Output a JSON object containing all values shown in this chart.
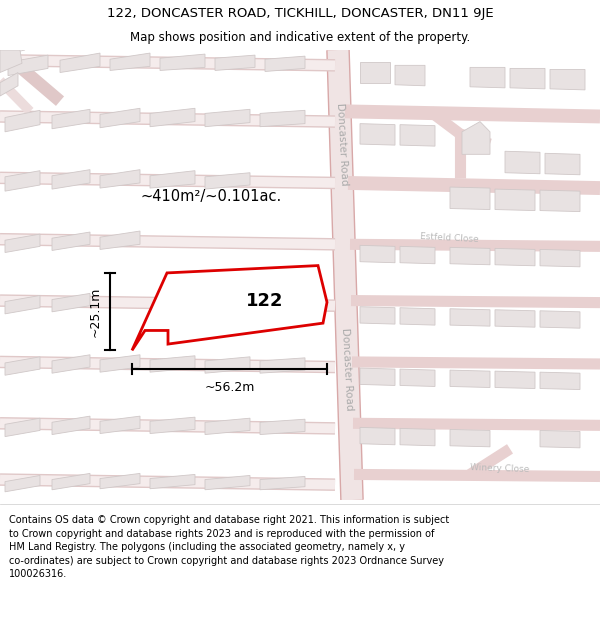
{
  "title_line1": "122, DONCASTER ROAD, TICKHILL, DONCASTER, DN11 9JE",
  "title_line2": "Map shows position and indicative extent of the property.",
  "footer_text": "Contains OS data © Crown copyright and database right 2021. This information is subject\nto Crown copyright and database rights 2023 and is reproduced with the permission of\nHM Land Registry. The polygons (including the associated geometry, namely x, y\nco-ordinates) are subject to Crown copyright and database rights 2023 Ordnance Survey\n100026316.",
  "map_bg": "#f2eeee",
  "road_color": "#e8b8b8",
  "road_lw": 1.0,
  "building_face": "#e0dada",
  "building_edge": "#d0c8c8",
  "highlight_color": "#dd0000",
  "area_text": "~410m²/~0.101ac.",
  "dim_width": "~56.2m",
  "dim_height": "~25.1m",
  "prop_label": "122",
  "title_fontsize": 9.5,
  "subtitle_fontsize": 8.5,
  "footer_fontsize": 7.0
}
